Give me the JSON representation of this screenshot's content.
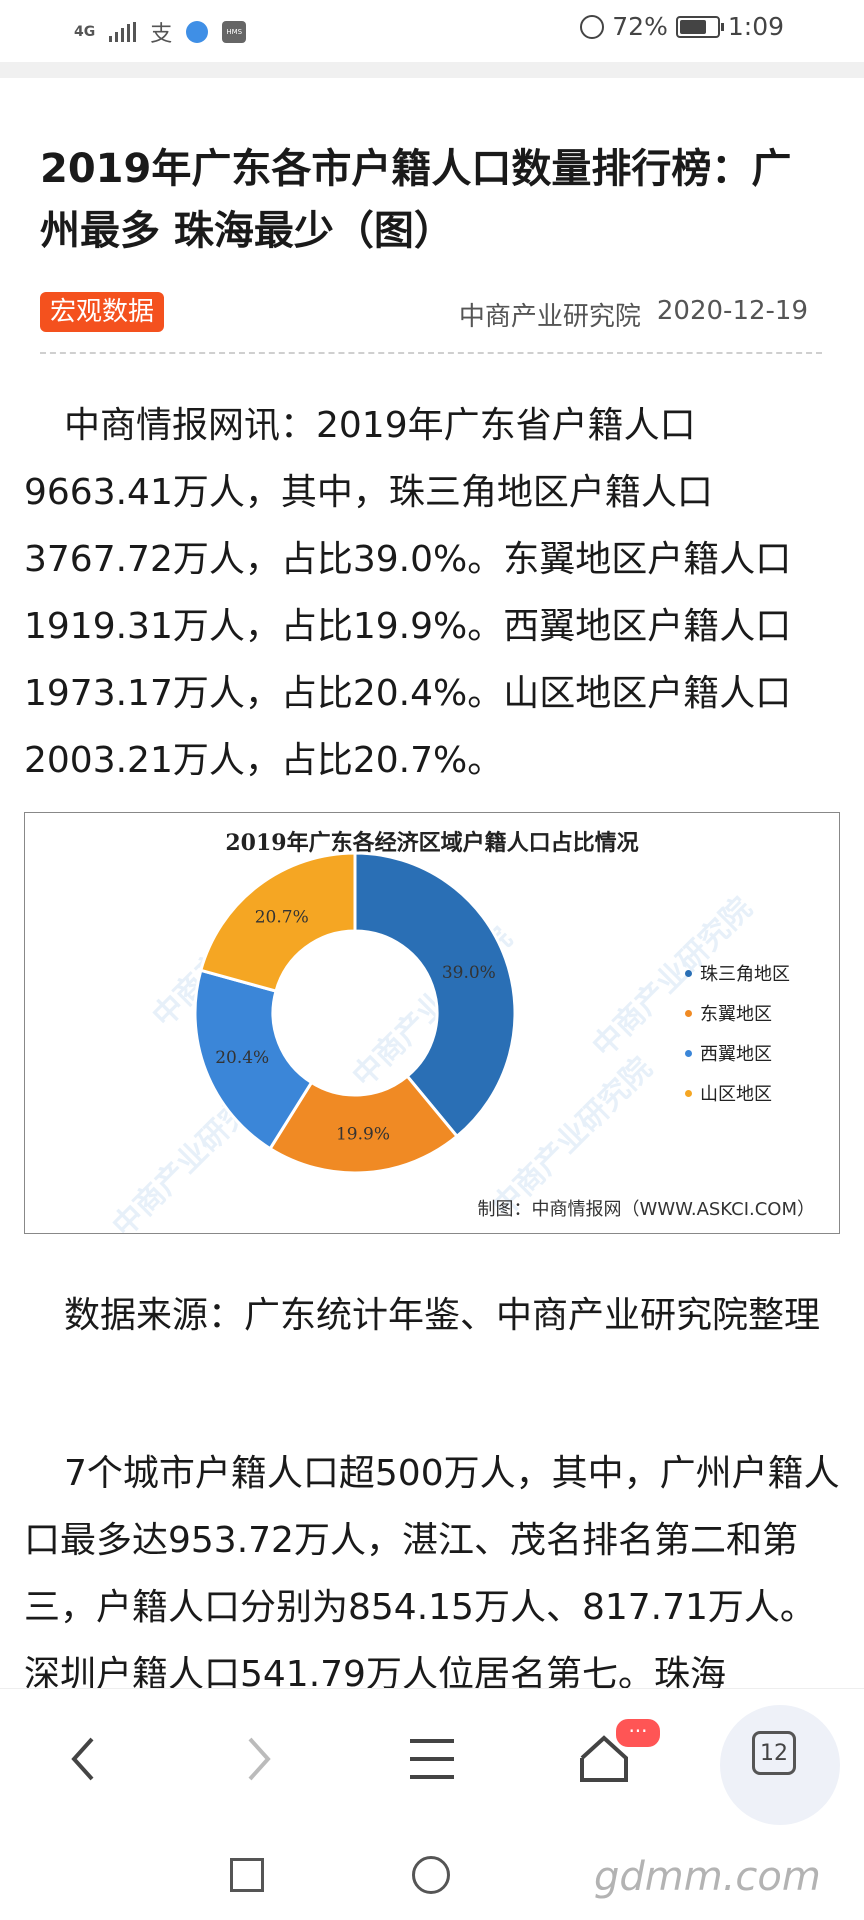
{
  "status_bar": {
    "network": "4G",
    "alipay_icon": "支",
    "hms_label": "HMS",
    "battery": "72%",
    "time": "1:09"
  },
  "article": {
    "title": "2019年广东各市户籍人口数量排行榜：广州最多 珠海最少（图）",
    "tag": "宏观数据",
    "source": "中商产业研究院",
    "date": "2020-12-19",
    "paragraph1": "中商情报网讯：2019年广东省户籍人口9663.41万人，其中，珠三角地区户籍人口3767.72万人，占比39.0%。东翼地区户籍人口1919.31万人，占比19.9%。西翼地区户籍人口1973.17万人，占比20.4%。山区地区户籍人口2003.21万人，占比20.7%。",
    "paragraph2": "数据来源：广东统计年鉴、中商产业研究院整理",
    "paragraph3": "7个城市户籍人口超500万人，其中，广州户籍人口最多达953.72万人，湛江、茂名排名第二和第三，户籍人口分别为854.15万人、817.71万人。深圳户籍人口541.79万人位居名第七。珠海"
  },
  "chart": {
    "watermark": "中商产业研究院",
    "credit": "制图：中商情报网（WWW.ASKCI.COM）"
  },
  "chart_data": {
    "type": "pie",
    "title": "2019年广东各经济区域户籍人口占比情况",
    "categories": [
      "珠三角地区",
      "东翼地区",
      "西翼地区",
      "山区地区"
    ],
    "values": [
      39.0,
      19.9,
      20.4,
      20.7
    ],
    "labels": [
      "39.0%",
      "19.9%",
      "20.4%",
      "20.7%"
    ],
    "colors": [
      "#2a6fb5",
      "#f08a24",
      "#3b86d8",
      "#f5a623"
    ],
    "legend_position": "right",
    "style": "donut"
  },
  "browser_bar": {
    "notification_badge": "···",
    "tab_count": "12"
  },
  "brand_watermark": "gdmm.com"
}
